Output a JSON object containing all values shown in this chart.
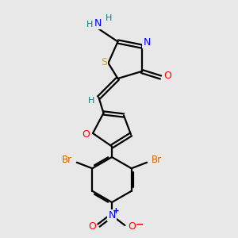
{
  "background_color": "#e8e8e8",
  "atom_colors": {
    "N": "#0000ff",
    "S": "#ccaa00",
    "O": "#ff0000",
    "Br": "#cc6600",
    "H": "#008080",
    "C": "#000000"
  },
  "figsize": [
    3.0,
    3.0
  ],
  "dpi": 100,
  "xlim": [
    0,
    10
  ],
  "ylim": [
    0,
    10
  ]
}
